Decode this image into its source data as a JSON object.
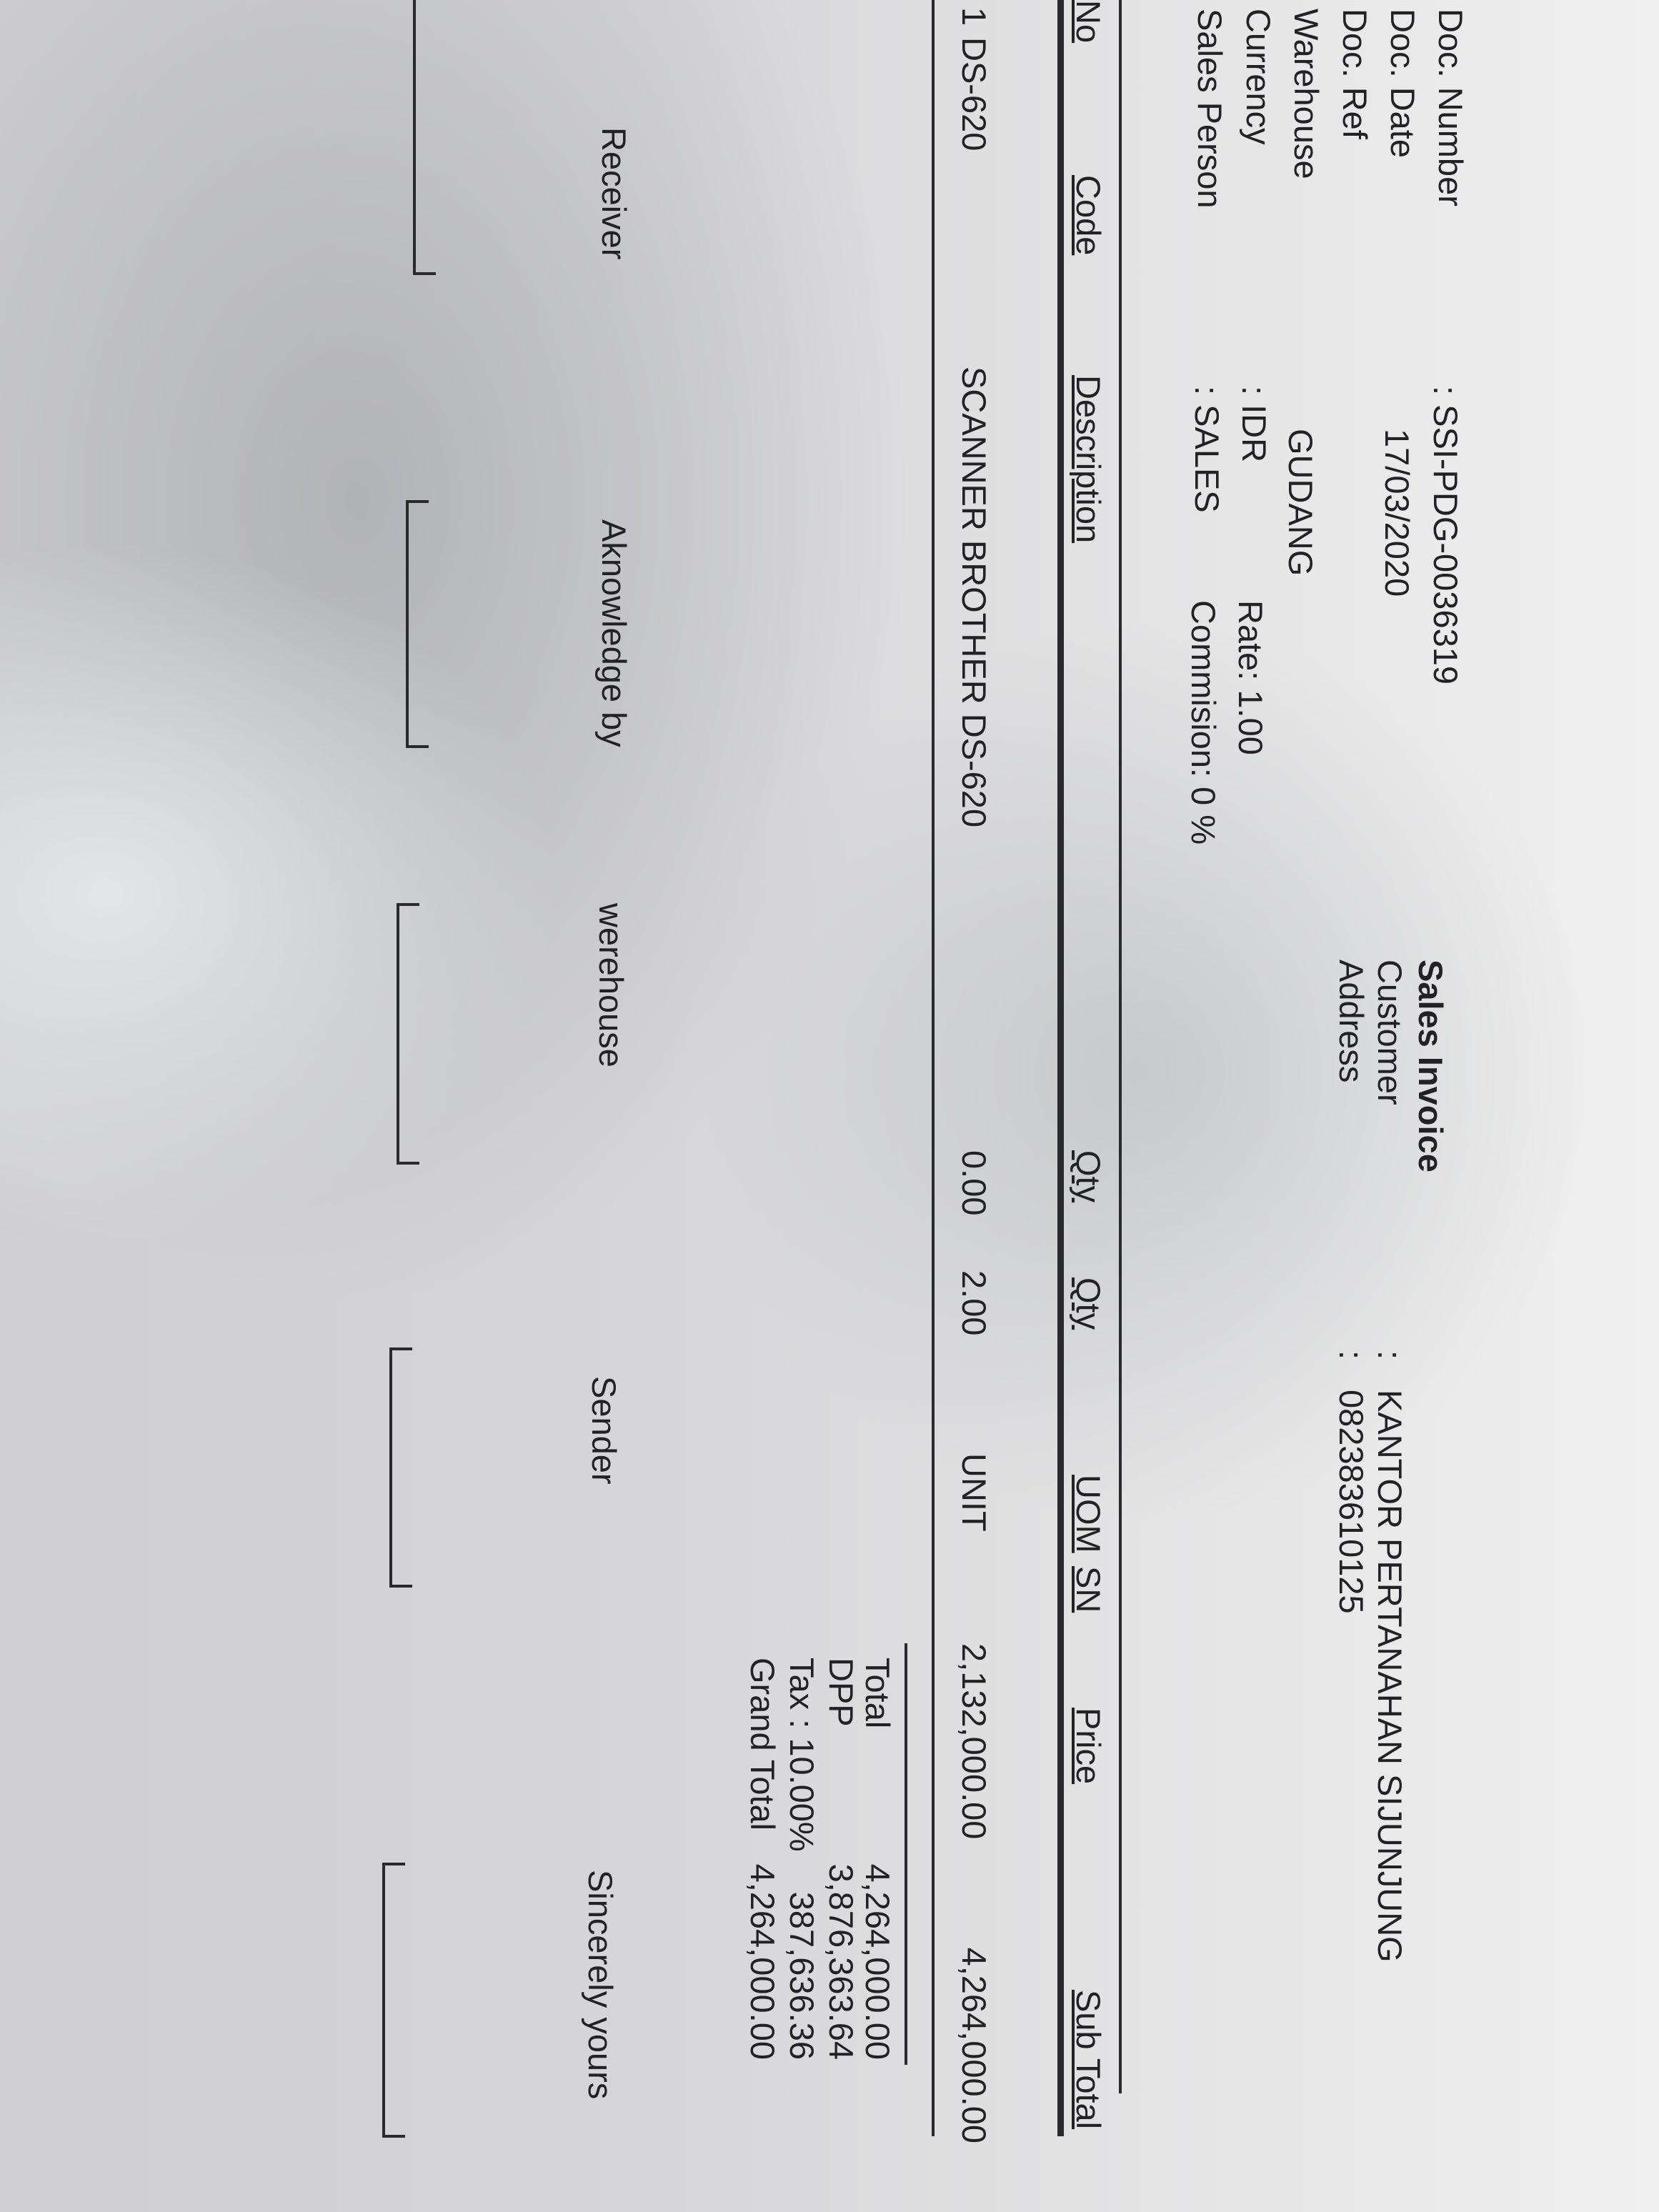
{
  "document": {
    "title": "Sales Invoice",
    "header_fields": [
      {
        "label": "Doc. Number",
        "value": ": SSI-PDG-0036319"
      },
      {
        "label": "Doc. Date",
        "value": "17/03/2020"
      },
      {
        "label": "Doc. Ref",
        "value": ""
      },
      {
        "label": "Warehouse",
        "value": "GUDANG"
      },
      {
        "label": "Currency",
        "value": ": IDR",
        "extra": "Rate: 1.00"
      },
      {
        "label": "Sales Person",
        "value": ": SALES",
        "extra": "Commision: 0 %"
      }
    ],
    "customer": {
      "label": "Customer",
      "colon": ":",
      "value": "KANTOR PERTANAHAN SIJUNJUNG"
    },
    "address": {
      "label": "Address",
      "colon": ":",
      "value": "082383610125"
    }
  },
  "table": {
    "columns": [
      "No",
      "Code",
      "Description",
      "Qty",
      "Qty",
      "UOM",
      "SN",
      "Price",
      "Sub Total"
    ],
    "rows": [
      {
        "no": "1",
        "code": "DS-620",
        "description": "SCANNER BROTHER DS-620",
        "qty1": "0.00",
        "qty2": "2.00",
        "uom": "UNIT",
        "sn": "",
        "price": "2,132,000.00",
        "subtotal": "4,264,000.00"
      }
    ]
  },
  "totals": [
    {
      "label": "Total",
      "value": "4,264,000.00"
    },
    {
      "label": "DPP",
      "value": "3,876,363.64"
    },
    {
      "label": "Tax : 10.00%",
      "value": "387,636.36"
    },
    {
      "label": "Grand Total",
      "value": "4,264,000.00"
    }
  ],
  "signatures": [
    "Receiver",
    "Aknowledge by",
    "werehouse",
    "Sender",
    "Sincerely yours"
  ]
}
